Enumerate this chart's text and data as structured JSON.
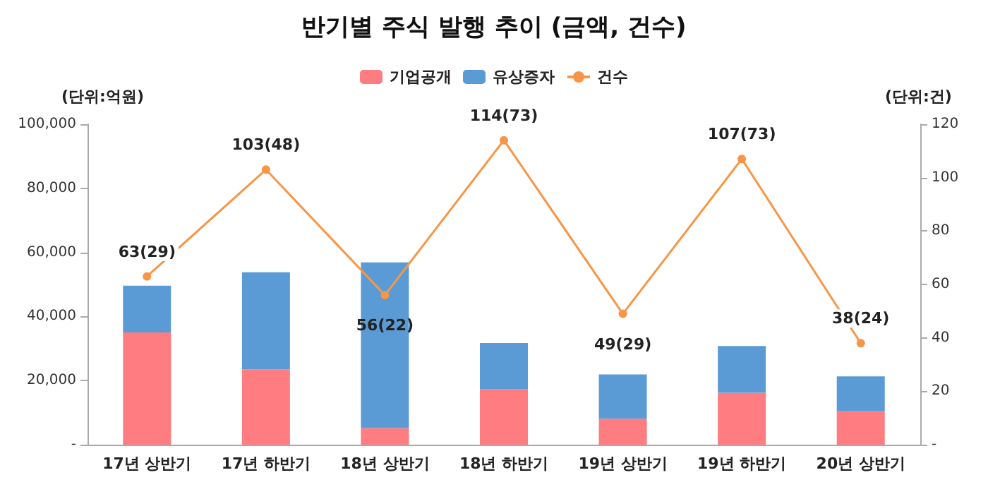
{
  "chart_data": {
    "type": "bar",
    "title": "반기별 주식 발행 추이 (금액, 건수)",
    "ylabel": "(단위:억원)",
    "y2label": "(단위:건)",
    "categories": [
      "17년 상반기",
      "17년 하반기",
      "18년 상반기",
      "18년 하반기",
      "19년 상반기",
      "19년 하반기",
      "20년 상반기"
    ],
    "stacked": true,
    "legend": "top",
    "grid": false,
    "series": [
      {
        "name": "기업공개",
        "color": "#ff7c80",
        "values": [
          35000,
          23500,
          5200,
          17300,
          8100,
          16200,
          10400
        ]
      },
      {
        "name": "유상증자",
        "color": "#5b9bd5",
        "values": [
          14600,
          30300,
          51700,
          14400,
          13800,
          14600,
          10900
        ]
      },
      {
        "name": "건수",
        "type": "line",
        "axis": "y2",
        "color": "#f79646",
        "marker": "circle",
        "values": [
          63,
          103,
          56,
          114,
          49,
          107,
          38
        ],
        "value_labels": [
          "63(29)",
          "103(48)",
          "56(22)",
          "114(73)",
          "49(29)",
          "107(73)",
          "38(24)"
        ]
      }
    ],
    "ylim": [
      0,
      100000
    ],
    "yticks": [
      {
        "value": 0,
        "label": "-"
      },
      {
        "value": 20000,
        "label": "20,000"
      },
      {
        "value": 40000,
        "label": "40,000"
      },
      {
        "value": 60000,
        "label": "60,000"
      },
      {
        "value": 80000,
        "label": "80,000"
      },
      {
        "value": 100000,
        "label": "100,000"
      }
    ],
    "y2lim": [
      0,
      120
    ],
    "y2ticks": [
      {
        "value": 0,
        "label": "-"
      },
      20,
      40,
      60,
      80,
      100,
      120
    ]
  }
}
